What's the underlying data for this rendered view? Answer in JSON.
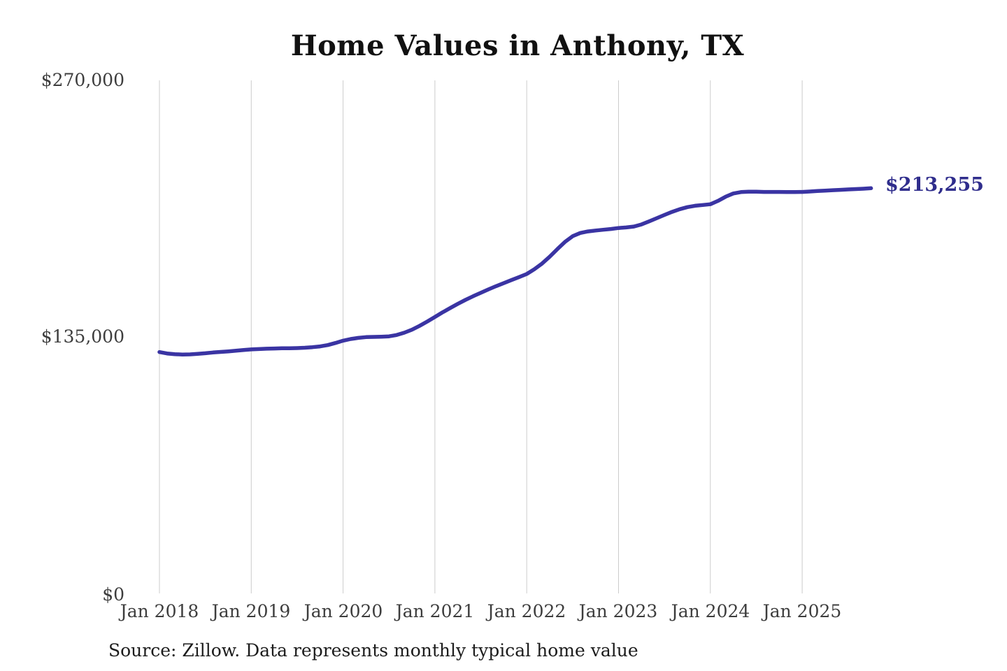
{
  "title": "Home Values in Anthony, TX",
  "end_label": "$213,255",
  "source": "Source: Zillow. Data represents monthly typical home value",
  "colors": {
    "line": "#3a34a3",
    "end_label": "#2f2d8c",
    "grid": "#cccccc",
    "title": "#111111",
    "axis_text": "#3d3d3d",
    "source_text": "#1c1c1c",
    "background": "#ffffff"
  },
  "y_axis": {
    "ticks": [
      "$270,000",
      "$135,000",
      "$0"
    ]
  },
  "x_axis": {
    "ticks": [
      "Jan 2018",
      "Jan 2019",
      "Jan 2020",
      "Jan 2021",
      "Jan 2022",
      "Jan 2023",
      "Jan 2024",
      "Jan 2025"
    ]
  },
  "chart_data": {
    "type": "line",
    "title": "Home Values in Anthony, TX",
    "series_name": "Monthly typical home value",
    "xlabel": "",
    "ylabel": "",
    "ylim": [
      0,
      270000
    ],
    "yticks": [
      0,
      135000,
      270000
    ],
    "grid": "vertical-only",
    "legend": "none",
    "end_annotation": "$213,255",
    "x": [
      "2018-01",
      "2018-02",
      "2018-03",
      "2018-04",
      "2018-05",
      "2018-06",
      "2018-07",
      "2018-08",
      "2018-09",
      "2018-10",
      "2018-11",
      "2018-12",
      "2019-01",
      "2019-02",
      "2019-03",
      "2019-04",
      "2019-05",
      "2019-06",
      "2019-07",
      "2019-08",
      "2019-09",
      "2019-10",
      "2019-11",
      "2019-12",
      "2020-01",
      "2020-02",
      "2020-03",
      "2020-04",
      "2020-05",
      "2020-06",
      "2020-07",
      "2020-08",
      "2020-09",
      "2020-10",
      "2020-11",
      "2020-12",
      "2021-01",
      "2021-02",
      "2021-03",
      "2021-04",
      "2021-05",
      "2021-06",
      "2021-07",
      "2021-08",
      "2021-09",
      "2021-10",
      "2021-11",
      "2021-12",
      "2022-01",
      "2022-02",
      "2022-03",
      "2022-04",
      "2022-05",
      "2022-06",
      "2022-07",
      "2022-08",
      "2022-09",
      "2022-10",
      "2022-11",
      "2022-12",
      "2023-01",
      "2023-02",
      "2023-03",
      "2023-04",
      "2023-05",
      "2023-06",
      "2023-07",
      "2023-08",
      "2023-09",
      "2023-10",
      "2023-11",
      "2023-12",
      "2024-01",
      "2024-02",
      "2024-03",
      "2024-04",
      "2024-05",
      "2024-06",
      "2024-07",
      "2024-08",
      "2024-09",
      "2024-10",
      "2024-11",
      "2024-12",
      "2025-01",
      "2025-02",
      "2025-03",
      "2025-04",
      "2025-05",
      "2025-06",
      "2025-07",
      "2025-08",
      "2025-09",
      "2025-10"
    ],
    "values": [
      127000,
      126300,
      125900,
      125700,
      125800,
      126100,
      126400,
      126800,
      127100,
      127400,
      127700,
      128100,
      128400,
      128600,
      128800,
      128900,
      129000,
      129000,
      129100,
      129300,
      129600,
      130000,
      130700,
      131800,
      133000,
      133900,
      134500,
      134900,
      135000,
      135100,
      135300,
      136000,
      137200,
      138800,
      140800,
      143100,
      145500,
      147900,
      150200,
      152400,
      154500,
      156400,
      158200,
      160000,
      161700,
      163300,
      164900,
      166500,
      168100,
      170600,
      173600,
      177200,
      181200,
      185000,
      188000,
      189700,
      190500,
      191000,
      191400,
      191800,
      192300,
      192600,
      193100,
      194200,
      195800,
      197500,
      199200,
      200800,
      202200,
      203300,
      204000,
      204400,
      204800,
      206600,
      208800,
      210500,
      211200,
      211400,
      211400,
      211300,
      211300,
      211300,
      211200,
      211200,
      211300,
      211500,
      211800,
      212000,
      212200,
      212400,
      212600,
      212800,
      213000,
      213255
    ]
  }
}
